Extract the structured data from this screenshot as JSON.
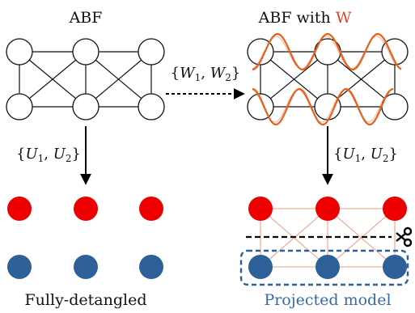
{
  "labels": {
    "abf": "ABF",
    "abf_with_prefix": "ABF with ",
    "abf_with_w": "W",
    "w_set": "{W1, W2}",
    "u_set_left": "{U1, U2}",
    "u_set_right": "{U1, U2}",
    "fully_detangled": "Fully-detangled",
    "projected_model": "Projected model"
  },
  "colors": {
    "red_node": "#ee0000",
    "blue_node": "#2d5f98",
    "wave": "#e8601c",
    "w_text": "#e8401c",
    "projected_text": "#3a6aa0",
    "projection_box": "#2d5f98",
    "lattice_lines": "#f0a080"
  },
  "icons": {
    "scissors": "scissors-icon"
  }
}
